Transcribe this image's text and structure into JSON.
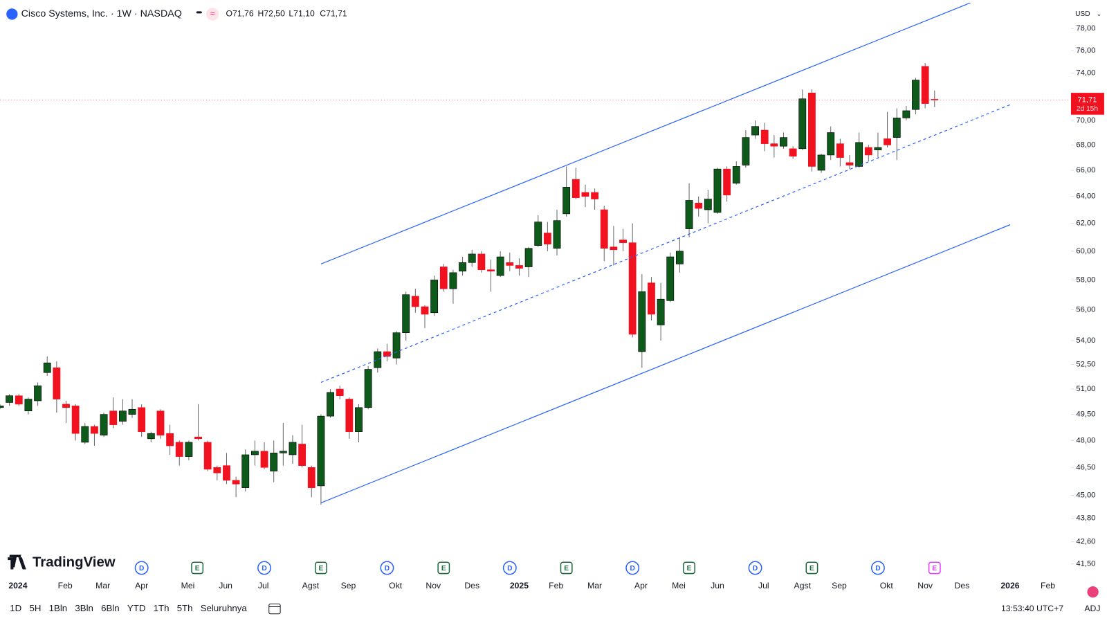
{
  "header": {
    "title": "Cisco Systems, Inc. · 1W · NASDAQ",
    "ohlc": [
      "O71,76",
      "H72,50",
      "L71,10",
      "C71,71"
    ],
    "currency": "USD"
  },
  "chart_data": {
    "type": "candlestick",
    "log_scale": true,
    "up_color": "#0e5a1a",
    "down_color": "#f2111f",
    "wick_color": "#666666",
    "open": [
      49.9,
      50.2,
      50.6,
      49.7,
      50.3,
      52.0,
      52.3,
      50.1,
      50.0,
      47.9,
      48.8,
      48.3,
      49.7,
      49.1,
      49.5,
      49.9,
      48.1,
      49.7,
      48.4,
      47.9,
      47.1,
      48.2,
      47.9,
      46.5,
      46.6,
      45.8,
      45.4,
      47.2,
      47.4,
      46.3,
      47.3,
      47.2,
      47.8,
      46.5,
      45.5,
      49.4,
      51.0,
      50.4,
      48.5,
      49.9,
      52.3,
      53.3,
      52.9,
      54.5,
      56.9,
      56.2,
      55.8,
      58.9,
      57.4,
      58.6,
      59.2,
      59.8,
      58.7,
      58.3,
      59.2,
      59.0,
      58.9,
      60.4,
      61.3,
      60.2,
      62.7,
      65.3,
      64.3,
      64.3,
      63.0,
      60.3,
      60.8,
      60.6,
      53.3,
      57.8,
      55.0,
      56.6,
      59.1,
      61.6,
      63.5,
      63.0,
      62.8,
      66.1,
      65.0,
      66.4,
      68.8,
      69.2,
      68.1,
      67.9,
      67.7,
      67.7,
      72.3,
      66.0,
      67.2,
      68.1,
      66.6,
      66.3,
      67.8,
      67.6,
      68.5,
      68.6,
      70.2,
      70.9,
      74.6,
      71.76
    ],
    "high": [
      50.1,
      50.7,
      50.7,
      50.5,
      51.4,
      53.0,
      52.7,
      50.3,
      50.1,
      49.0,
      48.9,
      49.6,
      50.5,
      50.4,
      50.4,
      50.1,
      48.5,
      49.8,
      48.9,
      48.0,
      48.0,
      50.1,
      48.0,
      46.6,
      47.3,
      46.0,
      47.5,
      48.0,
      47.9,
      48.0,
      49.0,
      48.3,
      48.9,
      46.6,
      49.5,
      51.0,
      51.2,
      50.5,
      50.1,
      52.4,
      53.5,
      53.8,
      54.6,
      57.2,
      57.4,
      56.3,
      58.3,
      59.1,
      58.7,
      59.6,
      60.1,
      60.0,
      59.4,
      60.0,
      59.9,
      59.5,
      60.3,
      62.6,
      62.1,
      63.0,
      66.3,
      66.2,
      64.9,
      64.6,
      63.3,
      61.8,
      61.6,
      62.0,
      58.4,
      58.2,
      57.8,
      59.9,
      61.0,
      65.0,
      64.0,
      64.5,
      66.2,
      66.3,
      66.7,
      69.2,
      70.0,
      69.8,
      68.8,
      69.0,
      67.9,
      72.6,
      72.6,
      67.3,
      69.5,
      68.5,
      67.2,
      69.0,
      68.0,
      69.0,
      70.7,
      71.0,
      71.2,
      73.6,
      74.9,
      72.5
    ],
    "low": [
      49.8,
      50.0,
      50.0,
      49.5,
      50.0,
      51.8,
      49.6,
      49.0,
      48.0,
      47.8,
      47.7,
      48.2,
      48.7,
      48.9,
      49.3,
      48.2,
      47.9,
      48.1,
      47.2,
      46.6,
      46.9,
      48.0,
      46.3,
      45.8,
      45.6,
      44.9,
      45.2,
      46.6,
      46.4,
      45.7,
      46.6,
      46.7,
      46.5,
      44.9,
      44.5,
      49.3,
      50.4,
      48.1,
      47.9,
      49.8,
      52.0,
      52.7,
      52.5,
      54.0,
      55.8,
      54.8,
      55.6,
      57.2,
      56.4,
      58.3,
      58.9,
      58.5,
      57.2,
      58.2,
      58.6,
      58.3,
      58.2,
      60.3,
      60.0,
      59.7,
      62.5,
      63.8,
      63.2,
      63.0,
      59.3,
      59.0,
      60.0,
      54.2,
      52.3,
      55.3,
      54.0,
      56.5,
      58.5,
      61.0,
      62.5,
      62.0,
      62.7,
      63.6,
      64.9,
      66.2,
      68.5,
      67.5,
      67.0,
      67.7,
      66.9,
      67.6,
      65.9,
      65.8,
      66.8,
      66.3,
      66.1,
      66.2,
      66.7,
      67.0,
      67.8,
      66.8,
      70.0,
      70.5,
      71.0,
      71.1
    ],
    "close": [
      50.0,
      50.6,
      50.1,
      50.4,
      51.2,
      52.6,
      50.4,
      49.9,
      48.4,
      48.8,
      48.4,
      49.5,
      48.9,
      49.7,
      49.8,
      48.5,
      48.4,
      48.3,
      47.7,
      47.1,
      47.9,
      48.1,
      46.4,
      46.2,
      45.8,
      45.6,
      47.2,
      47.4,
      46.5,
      47.3,
      47.4,
      47.9,
      46.6,
      45.4,
      49.4,
      50.8,
      50.6,
      48.5,
      49.9,
      52.2,
      53.3,
      53.0,
      54.5,
      57.0,
      56.2,
      55.7,
      58.0,
      57.4,
      58.5,
      59.2,
      59.8,
      58.7,
      58.6,
      59.6,
      59.0,
      58.8,
      60.2,
      62.1,
      60.5,
      62.2,
      64.7,
      63.9,
      64.0,
      63.8,
      60.2,
      60.1,
      60.6,
      54.4,
      57.2,
      55.7,
      56.7,
      59.6,
      60.0,
      63.7,
      63.1,
      63.8,
      66.1,
      64.1,
      66.3,
      68.6,
      69.5,
      68.1,
      67.9,
      68.6,
      67.1,
      71.8,
      66.3,
      67.2,
      69.0,
      67.0,
      66.4,
      68.2,
      67.2,
      67.8,
      68.0,
      70.2,
      70.8,
      73.4,
      71.4,
      71.71
    ],
    "xlim": [
      0,
      113.3
    ],
    "ylim": [
      41.0,
      80.4
    ],
    "xticks": [
      {
        "value": 1.9,
        "label": "2024"
      },
      {
        "value": 6.9,
        "label": "Feb"
      },
      {
        "value": 10.9,
        "label": "Mar"
      },
      {
        "value": 15.0,
        "label": "Apr"
      },
      {
        "value": 19.9,
        "label": "Mei"
      },
      {
        "value": 23.9,
        "label": "Jun"
      },
      {
        "value": 27.9,
        "label": "Jul"
      },
      {
        "value": 32.9,
        "label": "Agst"
      },
      {
        "value": 36.9,
        "label": "Sep"
      },
      {
        "value": 41.9,
        "label": "Okt"
      },
      {
        "value": 45.9,
        "label": "Nov"
      },
      {
        "value": 50.0,
        "label": "Des"
      },
      {
        "value": 55.0,
        "label": "2025"
      },
      {
        "value": 58.9,
        "label": "Feb"
      },
      {
        "value": 63.0,
        "label": "Mar"
      },
      {
        "value": 67.9,
        "label": "Apr"
      },
      {
        "value": 71.9,
        "label": "Mei"
      },
      {
        "value": 76.0,
        "label": "Jun"
      },
      {
        "value": 80.9,
        "label": "Jul"
      },
      {
        "value": 85.0,
        "label": "Agst"
      },
      {
        "value": 88.9,
        "label": "Sep"
      },
      {
        "value": 93.9,
        "label": "Okt"
      },
      {
        "value": 98.0,
        "label": "Nov"
      },
      {
        "value": 101.9,
        "label": "Des"
      },
      {
        "value": 107.0,
        "label": "2026"
      },
      {
        "value": 111.0,
        "label": "Feb"
      }
    ],
    "yticks": [
      {
        "value": 78,
        "label": "78,00"
      },
      {
        "value": 76,
        "label": "76,00"
      },
      {
        "value": 74,
        "label": "74,00"
      },
      {
        "value": 70,
        "label": "70,00"
      },
      {
        "value": 68,
        "label": "68,00"
      },
      {
        "value": 66,
        "label": "66,00"
      },
      {
        "value": 64,
        "label": "64,00"
      },
      {
        "value": 62,
        "label": "62,00"
      },
      {
        "value": 60,
        "label": "60,00"
      },
      {
        "value": 58,
        "label": "58,00"
      },
      {
        "value": 56,
        "label": "56,00"
      },
      {
        "value": 54,
        "label": "54,00"
      },
      {
        "value": 52.5,
        "label": "52,50"
      },
      {
        "value": 51,
        "label": "51,00"
      },
      {
        "value": 49.5,
        "label": "49,50"
      },
      {
        "value": 48,
        "label": "48,00"
      },
      {
        "value": 46.5,
        "label": "46,50"
      },
      {
        "value": 45,
        "label": "45,00"
      },
      {
        "value": 43.8,
        "label": "43,80"
      },
      {
        "value": 42.6,
        "label": "42,60"
      },
      {
        "value": 41.5,
        "label": "41,50"
      }
    ],
    "lines": [
      {
        "color": "#2962ff",
        "style": "solid",
        "points": [
          [
            34.0,
            59.1
          ],
          [
            102.8,
            80.4
          ]
        ]
      },
      {
        "color": "#2962ff",
        "style": "dashed",
        "points": [
          [
            34.0,
            51.4
          ],
          [
            107.0,
            71.3
          ]
        ]
      },
      {
        "color": "#2962ff",
        "style": "solid",
        "points": [
          [
            34.0,
            44.6
          ],
          [
            107.0,
            61.9
          ]
        ]
      }
    ],
    "last_price": {
      "value": 71.71,
      "label": "71,71",
      "countdown": "2d 15h",
      "color": "#f2111f"
    },
    "events": [
      {
        "x": 15.0,
        "label": "D",
        "color": "#2962ff"
      },
      {
        "x": 20.9,
        "label": "E",
        "color": "#1b6b3a"
      },
      {
        "x": 28.0,
        "label": "D",
        "color": "#2962ff"
      },
      {
        "x": 34.0,
        "label": "E",
        "color": "#1b6b3a"
      },
      {
        "x": 41.0,
        "label": "D",
        "color": "#2962ff"
      },
      {
        "x": 47.0,
        "label": "E",
        "color": "#1b6b3a"
      },
      {
        "x": 54.0,
        "label": "D",
        "color": "#2962ff"
      },
      {
        "x": 60.0,
        "label": "E",
        "color": "#1b6b3a"
      },
      {
        "x": 67.0,
        "label": "D",
        "color": "#2962ff"
      },
      {
        "x": 73.0,
        "label": "E",
        "color": "#1b6b3a"
      },
      {
        "x": 80.0,
        "label": "D",
        "color": "#2962ff"
      },
      {
        "x": 86.0,
        "label": "E",
        "color": "#1b6b3a"
      },
      {
        "x": 93.0,
        "label": "D",
        "color": "#2962ff"
      },
      {
        "x": 99.0,
        "label": "E",
        "color": "#e040fb"
      }
    ]
  },
  "footer": {
    "logo": "TradingView",
    "ranges": [
      "1D",
      "5H",
      "1Bln",
      "3Bln",
      "6Bln",
      "YTD",
      "1Th",
      "5Th",
      "Seluruhnya"
    ],
    "clock": "13:53:40 UTC+7",
    "adj": "ADJ"
  }
}
